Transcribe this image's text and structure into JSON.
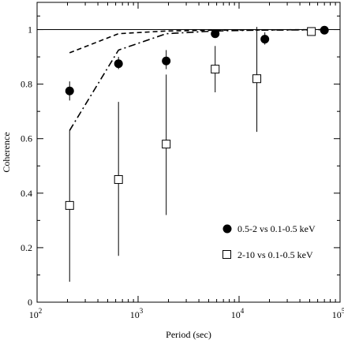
{
  "chart_data": {
    "type": "scatter",
    "xlabel": "Period (sec)",
    "ylabel": "Coherence",
    "xscale": "log",
    "xlim": [
      100,
      100000
    ],
    "ylim": [
      0,
      1.1
    ],
    "x_ticks": [
      {
        "value": 100,
        "base": "10",
        "exp": "2"
      },
      {
        "value": 1000,
        "base": "10",
        "exp": "3"
      },
      {
        "value": 10000,
        "base": "10",
        "exp": "4"
      },
      {
        "value": 100000,
        "base": "10",
        "exp": "5"
      }
    ],
    "y_ticks": [
      {
        "value": 0,
        "label": "0"
      },
      {
        "value": 0.2,
        "label": "0.2"
      },
      {
        "value": 0.4,
        "label": "0.4"
      },
      {
        "value": 0.6,
        "label": "0.6"
      },
      {
        "value": 0.8,
        "label": "0.8"
      },
      {
        "value": 1,
        "label": "1"
      }
    ],
    "reference_line": {
      "y": 1.0,
      "style": "solid"
    },
    "series": [
      {
        "name": "0.5-2 vs 0.1-0.5 keV",
        "marker": "filled-circle",
        "x": [
          210,
          640,
          1900,
          5800,
          18000,
          70000
        ],
        "y": [
          0.775,
          0.875,
          0.885,
          0.985,
          0.965,
          0.998
        ],
        "yerr_low": [
          0.74,
          0.855,
          0.855,
          0.97,
          0.945,
          0.995
        ],
        "yerr_high": [
          0.81,
          0.9,
          0.925,
          1.0,
          0.99,
          1.0
        ]
      },
      {
        "name": "2-10 vs 0.1-0.5 keV",
        "marker": "open-square",
        "x": [
          210,
          640,
          1900,
          5800,
          15000,
          52000
        ],
        "y": [
          0.355,
          0.45,
          0.58,
          0.855,
          0.82,
          0.993
        ],
        "yerr_low": [
          0.075,
          0.17,
          0.32,
          0.77,
          0.625,
          0.99
        ],
        "yerr_high": [
          0.63,
          0.735,
          0.835,
          0.94,
          1.01,
          0.998
        ]
      }
    ],
    "model_lines": [
      {
        "style": "dashed",
        "x": [
          210,
          640,
          1900,
          5800,
          18000,
          70000
        ],
        "y": [
          0.915,
          0.985,
          0.995,
          0.998,
          0.999,
          1.0
        ]
      },
      {
        "style": "dashdot",
        "x": [
          210,
          640,
          1900,
          5800,
          15000,
          52000
        ],
        "y": [
          0.63,
          0.925,
          0.985,
          0.995,
          0.998,
          0.999
        ]
      }
    ],
    "legend": {
      "position": "bottom-right",
      "grid": false
    }
  }
}
